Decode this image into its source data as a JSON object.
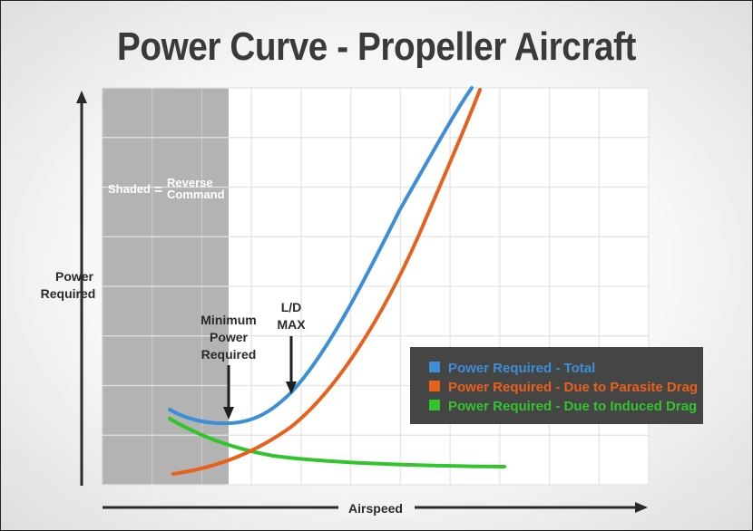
{
  "chart_data": {
    "type": "line",
    "title": "Power Curve - Propeller Aircraft",
    "xlabel": "Airspeed",
    "ylabel": [
      "Power",
      "Required"
    ],
    "grid": true,
    "shaded_region": {
      "label_left": "Shaded",
      "label_eq": "=",
      "label_right": [
        "Reverse",
        "Command"
      ],
      "color": "#b3b3b3"
    },
    "annotations": [
      {
        "id": "min-power",
        "lines": [
          "Minimum",
          "Power",
          "Required"
        ]
      },
      {
        "id": "ld-max",
        "lines": [
          "L/D",
          "MAX"
        ]
      }
    ],
    "legend_placement": "bottom-right",
    "series": [
      {
        "name": "Power Required - Total",
        "color": "#3a8fd8"
      },
      {
        "name": "Power Required - Due to Parasite Drag",
        "color": "#e8611c"
      },
      {
        "name": "Power Required - Due to Induced Drag",
        "color": "#31c42c"
      }
    ]
  }
}
